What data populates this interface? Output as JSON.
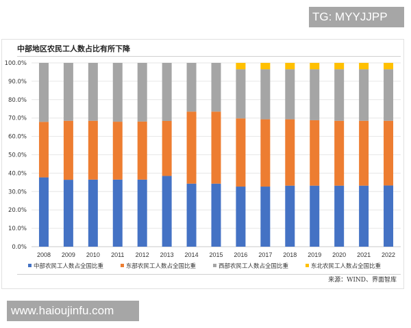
{
  "watermarks": {
    "top_right": "TG: MYYJJPP",
    "bottom_left": "www.haioujinfu.com"
  },
  "chart_data": {
    "type": "bar",
    "stacked": true,
    "title": "中部地区农民工人数占比有所下降",
    "source": "来源：WIND、界面智库",
    "categories": [
      "2008",
      "2009",
      "2010",
      "2011",
      "2012",
      "2013",
      "2014",
      "2015",
      "2016",
      "2017",
      "2018",
      "2019",
      "2020",
      "2021",
      "2022"
    ],
    "ylim": [
      0,
      100
    ],
    "yticks": [
      "0.0%",
      "10.0%",
      "20.0%",
      "30.0%",
      "40.0%",
      "50.0%",
      "60.0%",
      "70.0%",
      "80.0%",
      "90.0%",
      "100.0%"
    ],
    "grid": true,
    "legend_position": "bottom",
    "series": [
      {
        "name": "中部农民工人数占全国比重",
        "color": "#4472c4",
        "values": [
          37.7,
          36.4,
          36.5,
          36.5,
          36.5,
          38.5,
          34.3,
          34.3,
          32.7,
          32.7,
          33.2,
          33.2,
          33.2,
          33.2,
          33.3
        ]
      },
      {
        "name": "东部农民工人数占全国比重",
        "color": "#ed7d31",
        "values": [
          30.2,
          32.1,
          32.0,
          31.5,
          31.6,
          29.9,
          39.2,
          39.2,
          37.1,
          36.6,
          36.1,
          35.6,
          35.3,
          35.3,
          35.2
        ]
      },
      {
        "name": "西部农民工人数占全国比重",
        "color": "#a5a5a5",
        "values": [
          32.1,
          31.5,
          31.5,
          32.0,
          31.9,
          31.6,
          26.5,
          26.5,
          26.7,
          27.2,
          27.2,
          27.7,
          28.0,
          28.0,
          28.0
        ]
      },
      {
        "name": "东北农民工人数占全国比重",
        "color": "#ffc000",
        "values": [
          0,
          0,
          0,
          0,
          0,
          0,
          0,
          0,
          3.5,
          3.5,
          3.5,
          3.5,
          3.5,
          3.5,
          3.5
        ]
      }
    ]
  }
}
